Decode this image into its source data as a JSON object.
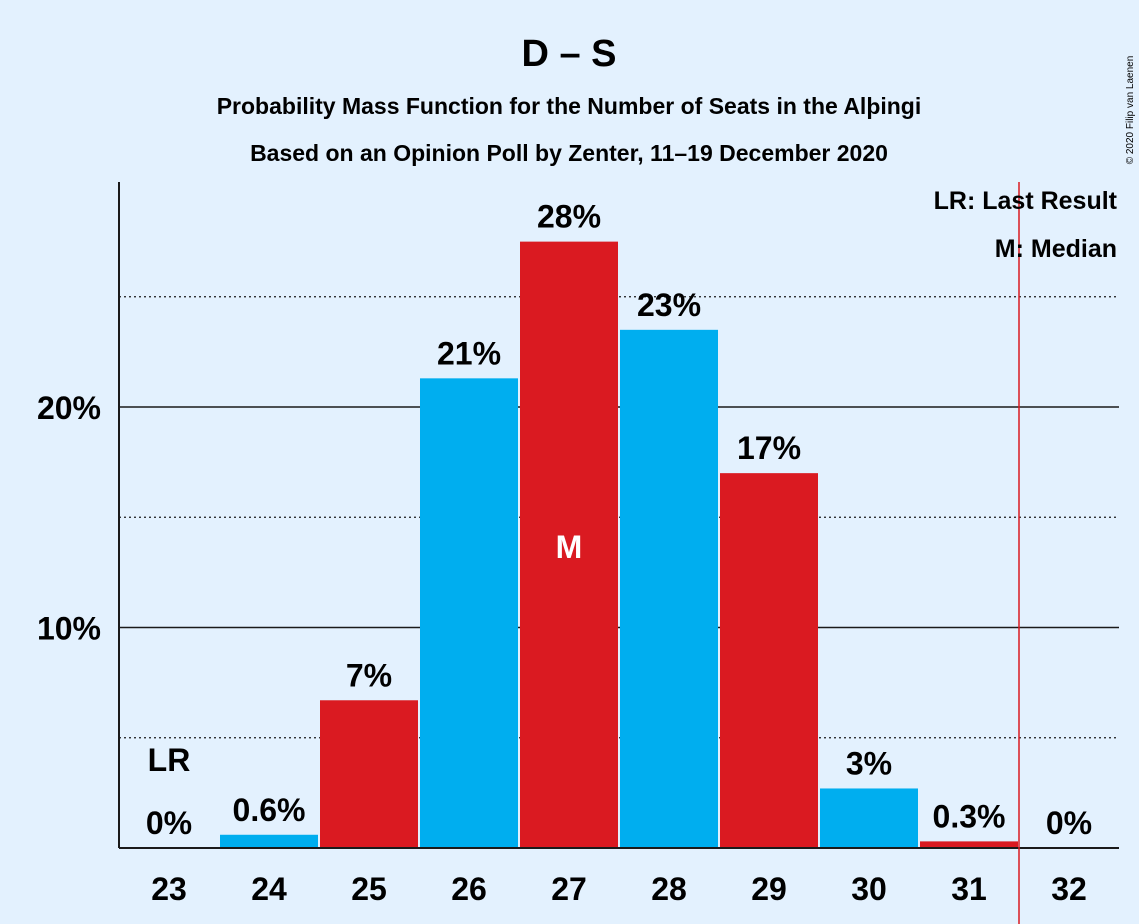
{
  "chart_data": {
    "type": "bar",
    "title": "D – S",
    "subtitle": "Probability Mass Function for the Number of Seats in the Alþingi",
    "subtitle2": "Based on an Opinion Poll by Zenter, 11–19 December 2020",
    "copyright": "© 2020 Filip van Laenen",
    "categories": [
      "23",
      "24",
      "25",
      "26",
      "27",
      "28",
      "29",
      "30",
      "31",
      "32"
    ],
    "values": [
      0,
      0.6,
      6.7,
      21.3,
      27.5,
      23.5,
      17.0,
      2.7,
      0.3,
      0
    ],
    "labels": [
      "0%",
      "0.6%",
      "7%",
      "21%",
      "28%",
      "23%",
      "17%",
      "3%",
      "0.3%",
      "0%"
    ],
    "bar_colors": [
      "#00aeef",
      "#00aeef",
      "#da1a21",
      "#00aeef",
      "#da1a21",
      "#00aeef",
      "#da1a21",
      "#00aeef",
      "#da1a21",
      "#00aeef"
    ],
    "ylim": [
      0,
      30
    ],
    "yticks": [
      10,
      20
    ],
    "ytick_labels": [
      "10%",
      "20%"
    ],
    "minor_gridlines": [
      5,
      15,
      25
    ],
    "last_result_seat": "23",
    "last_result_marker": "LR",
    "median_seat": "27",
    "median_marker": "M",
    "last_result_line_color": "#da1a21",
    "legend": [
      "LR: Last Result",
      "M: Median"
    ],
    "legend_position": "top-right"
  }
}
